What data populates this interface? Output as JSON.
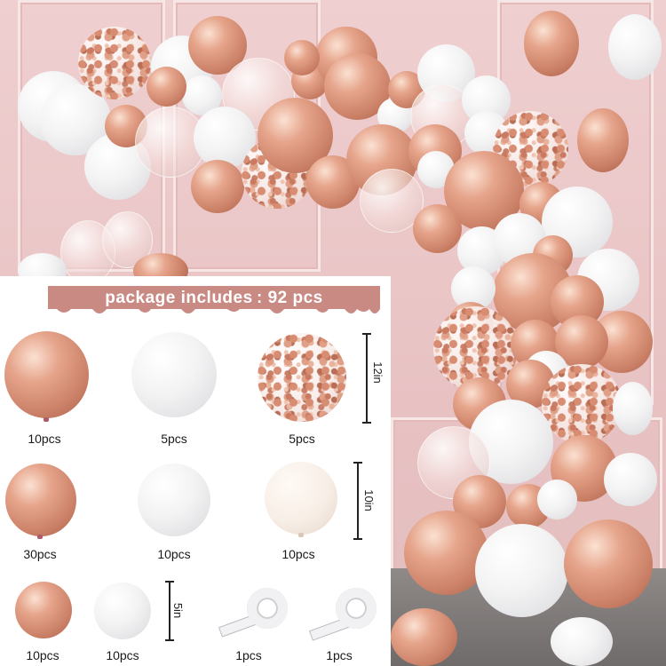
{
  "banner": {
    "text": "package includes : 92 pcs"
  },
  "items": [
    {
      "count": "10pcs",
      "kind": "rose-gold-balloon-12in"
    },
    {
      "count": "5pcs",
      "kind": "white-balloon-12in"
    },
    {
      "count": "5pcs",
      "kind": "confetti-balloon-12in"
    },
    {
      "count": "30pcs",
      "kind": "rose-gold-balloon-10in"
    },
    {
      "count": "10pcs",
      "kind": "white-balloon-10in"
    },
    {
      "count": "10pcs",
      "kind": "cream-balloon-10in"
    },
    {
      "count": "10pcs",
      "kind": "rose-gold-balloon-5in"
    },
    {
      "count": "10pcs",
      "kind": "white-balloon-5in"
    },
    {
      "count": "1pcs",
      "kind": "glue-dot-tape"
    },
    {
      "count": "1pcs",
      "kind": "balloon-strip-tape"
    }
  ],
  "sizes": {
    "large": "12in",
    "medium": "10in",
    "small": "5in"
  },
  "colors": {
    "rose_gold": "#d89279",
    "white": "#f4f4f5",
    "cream": "#f7eee6",
    "banner": "#c98a84",
    "background": "#e9c8c9"
  }
}
